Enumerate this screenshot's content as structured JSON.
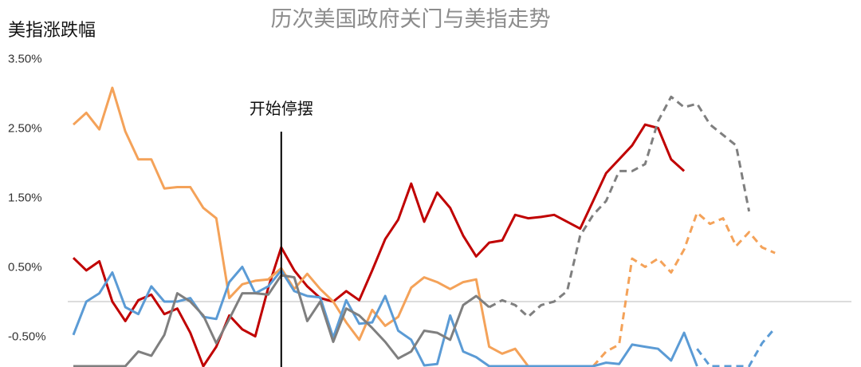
{
  "chart_data": {
    "type": "line",
    "title": "历次美国政府关门与美指走势",
    "ylabel": "美指涨跌幅",
    "xlabel": "",
    "ylim": [
      -0.98,
      3.5
    ],
    "y_ticks": [
      "3.50%",
      "2.50%",
      "1.50%",
      "0.50%",
      "-0.50%"
    ],
    "y_tick_values": [
      3.5,
      2.5,
      1.5,
      0.5,
      -0.5
    ],
    "zero_line": true,
    "x": [
      -16,
      -15,
      -14,
      -13,
      -12,
      -11,
      -10,
      -9,
      -8,
      -7,
      -6,
      -5,
      -4,
      -3,
      -2,
      -1,
      0,
      1,
      2,
      3,
      4,
      5,
      6,
      7,
      8,
      9,
      10,
      11,
      12,
      13,
      14,
      15,
      16,
      17,
      18,
      19,
      20,
      21,
      22,
      23,
      24,
      25,
      26,
      27,
      28,
      29,
      30,
      31,
      32,
      33,
      34,
      35,
      36,
      37,
      38
    ],
    "annotation": {
      "label": "开始停摆",
      "x": 0
    },
    "series": [
      {
        "color": "#c00000",
        "dash": false,
        "points": [
          [
            -16,
            0.63
          ],
          [
            -15,
            0.45
          ],
          [
            -14,
            0.58
          ],
          [
            -13,
            0.0
          ],
          [
            -12,
            -0.28
          ],
          [
            -11,
            0.02
          ],
          [
            -10,
            0.1
          ],
          [
            -9,
            -0.18
          ],
          [
            -8,
            -0.1
          ],
          [
            -7,
            -0.45
          ],
          [
            -6,
            -0.98
          ],
          [
            -5,
            -0.65
          ],
          [
            -4,
            -0.2
          ],
          [
            -3,
            -0.4
          ],
          [
            -2,
            -0.5
          ],
          [
            -1,
            0.2
          ],
          [
            0,
            0.78
          ],
          [
            1,
            0.45
          ],
          [
            2,
            0.22
          ],
          [
            3,
            0.05
          ],
          [
            4,
            0.0
          ],
          [
            5,
            0.15
          ],
          [
            6,
            0.02
          ],
          [
            7,
            0.45
          ],
          [
            8,
            0.9
          ],
          [
            9,
            1.18
          ],
          [
            10,
            1.7
          ],
          [
            11,
            1.15
          ],
          [
            12,
            1.57
          ],
          [
            13,
            1.35
          ],
          [
            14,
            0.95
          ],
          [
            15,
            0.65
          ],
          [
            16,
            0.85
          ],
          [
            17,
            0.88
          ],
          [
            18,
            1.25
          ],
          [
            19,
            1.2
          ],
          [
            20,
            1.22
          ],
          [
            21,
            1.25
          ],
          [
            22,
            1.15
          ],
          [
            23,
            1.05
          ],
          [
            24,
            1.45
          ],
          [
            25,
            1.85
          ],
          [
            26,
            2.05
          ],
          [
            27,
            2.25
          ],
          [
            28,
            2.55
          ],
          [
            29,
            2.5
          ],
          [
            30,
            2.05
          ],
          [
            31,
            1.88
          ]
        ]
      },
      {
        "color": "#f4a259",
        "dash": false,
        "points": [
          [
            -16,
            2.55
          ],
          [
            -15,
            2.72
          ],
          [
            -14,
            2.48
          ],
          [
            -13,
            3.08
          ],
          [
            -12,
            2.45
          ],
          [
            -11,
            2.05
          ],
          [
            -10,
            2.05
          ],
          [
            -9,
            1.63
          ],
          [
            -8,
            1.65
          ],
          [
            -7,
            1.65
          ],
          [
            -6,
            1.35
          ],
          [
            -5,
            1.2
          ],
          [
            -4,
            0.05
          ],
          [
            -3,
            0.25
          ],
          [
            -2,
            0.3
          ],
          [
            -1,
            0.32
          ],
          [
            0,
            0.48
          ],
          [
            1,
            0.18
          ],
          [
            2,
            0.4
          ],
          [
            3,
            0.18
          ],
          [
            4,
            0.0
          ],
          [
            5,
            -0.3
          ],
          [
            6,
            -0.55
          ],
          [
            7,
            -0.12
          ],
          [
            8,
            -0.35
          ],
          [
            9,
            -0.22
          ],
          [
            10,
            0.2
          ],
          [
            11,
            0.35
          ],
          [
            12,
            0.28
          ],
          [
            13,
            0.18
          ],
          [
            14,
            0.28
          ],
          [
            15,
            0.32
          ],
          [
            16,
            -0.65
          ],
          [
            17,
            -0.75
          ],
          [
            18,
            -0.68
          ],
          [
            19,
            -0.98
          ]
        ]
      },
      {
        "color": "#f4a259",
        "dash": true,
        "points": [
          [
            24,
            -0.98
          ],
          [
            25,
            -0.72
          ],
          [
            26,
            -0.62
          ],
          [
            27,
            0.62
          ],
          [
            28,
            0.5
          ],
          [
            29,
            0.62
          ],
          [
            30,
            0.42
          ],
          [
            31,
            0.75
          ],
          [
            32,
            1.28
          ],
          [
            33,
            1.12
          ],
          [
            34,
            1.2
          ],
          [
            35,
            0.8
          ],
          [
            36,
            1.0
          ],
          [
            37,
            0.78
          ],
          [
            38,
            0.7
          ]
        ]
      },
      {
        "color": "#5b9bd5",
        "dash": false,
        "points": [
          [
            -16,
            -0.48
          ],
          [
            -15,
            0.0
          ],
          [
            -14,
            0.12
          ],
          [
            -13,
            0.42
          ],
          [
            -12,
            -0.08
          ],
          [
            -11,
            -0.18
          ],
          [
            -10,
            0.22
          ],
          [
            -9,
            0.0
          ],
          [
            -8,
            0.0
          ],
          [
            -7,
            0.05
          ],
          [
            -6,
            -0.22
          ],
          [
            -5,
            -0.25
          ],
          [
            -4,
            0.28
          ],
          [
            -3,
            0.5
          ],
          [
            -2,
            0.12
          ],
          [
            -1,
            0.22
          ],
          [
            0,
            0.45
          ],
          [
            1,
            0.15
          ],
          [
            2,
            0.08
          ],
          [
            3,
            0.06
          ],
          [
            4,
            -0.52
          ],
          [
            5,
            0.02
          ],
          [
            6,
            -0.32
          ],
          [
            7,
            -0.3
          ],
          [
            8,
            0.08
          ],
          [
            9,
            -0.42
          ],
          [
            10,
            -0.55
          ],
          [
            11,
            -0.92
          ],
          [
            12,
            -0.9
          ],
          [
            13,
            -0.2
          ],
          [
            14,
            -0.72
          ],
          [
            15,
            -0.8
          ],
          [
            16,
            -0.98
          ],
          [
            24,
            -0.98
          ],
          [
            25,
            -0.88
          ],
          [
            26,
            -0.9
          ],
          [
            27,
            -0.62
          ],
          [
            28,
            -0.65
          ],
          [
            29,
            -0.68
          ],
          [
            30,
            -0.85
          ],
          [
            31,
            -0.45
          ],
          [
            32,
            -0.98
          ]
        ]
      },
      {
        "color": "#5b9bd5",
        "dash": true,
        "points": [
          [
            32,
            -0.68
          ],
          [
            33,
            -0.98
          ],
          [
            36,
            -0.98
          ],
          [
            37,
            -0.6
          ],
          [
            38,
            -0.38
          ]
        ]
      },
      {
        "color": "#7f7f7f",
        "dash": false,
        "points": [
          [
            -16,
            -0.98
          ],
          [
            -12,
            -0.98
          ],
          [
            -11,
            -0.72
          ],
          [
            -10,
            -0.78
          ],
          [
            -9,
            -0.48
          ],
          [
            -8,
            0.12
          ],
          [
            -7,
            0.0
          ],
          [
            -6,
            -0.2
          ],
          [
            -5,
            -0.6
          ],
          [
            -4,
            -0.25
          ],
          [
            -3,
            0.12
          ],
          [
            -2,
            0.12
          ],
          [
            -1,
            0.1
          ],
          [
            0,
            0.38
          ],
          [
            1,
            0.35
          ],
          [
            2,
            -0.28
          ],
          [
            3,
            0.0
          ],
          [
            4,
            -0.58
          ],
          [
            5,
            -0.1
          ],
          [
            6,
            -0.2
          ],
          [
            7,
            -0.38
          ],
          [
            8,
            -0.58
          ],
          [
            9,
            -0.82
          ],
          [
            10,
            -0.72
          ],
          [
            11,
            -0.42
          ],
          [
            12,
            -0.45
          ],
          [
            13,
            -0.55
          ],
          [
            14,
            -0.05
          ],
          [
            15,
            0.08
          ],
          [
            16,
            -0.08
          ]
        ]
      },
      {
        "color": "#7f7f7f",
        "dash": true,
        "points": [
          [
            16,
            -0.08
          ],
          [
            17,
            0.02
          ],
          [
            18,
            -0.05
          ],
          [
            19,
            -0.22
          ],
          [
            20,
            -0.05
          ],
          [
            21,
            0.0
          ],
          [
            22,
            0.15
          ],
          [
            23,
            0.95
          ],
          [
            24,
            1.25
          ],
          [
            25,
            1.45
          ],
          [
            26,
            1.88
          ],
          [
            27,
            1.88
          ],
          [
            28,
            1.98
          ],
          [
            29,
            2.6
          ],
          [
            30,
            2.95
          ],
          [
            31,
            2.8
          ],
          [
            32,
            2.85
          ],
          [
            33,
            2.55
          ],
          [
            34,
            2.4
          ],
          [
            35,
            2.25
          ],
          [
            36,
            1.3
          ]
        ]
      }
    ]
  }
}
